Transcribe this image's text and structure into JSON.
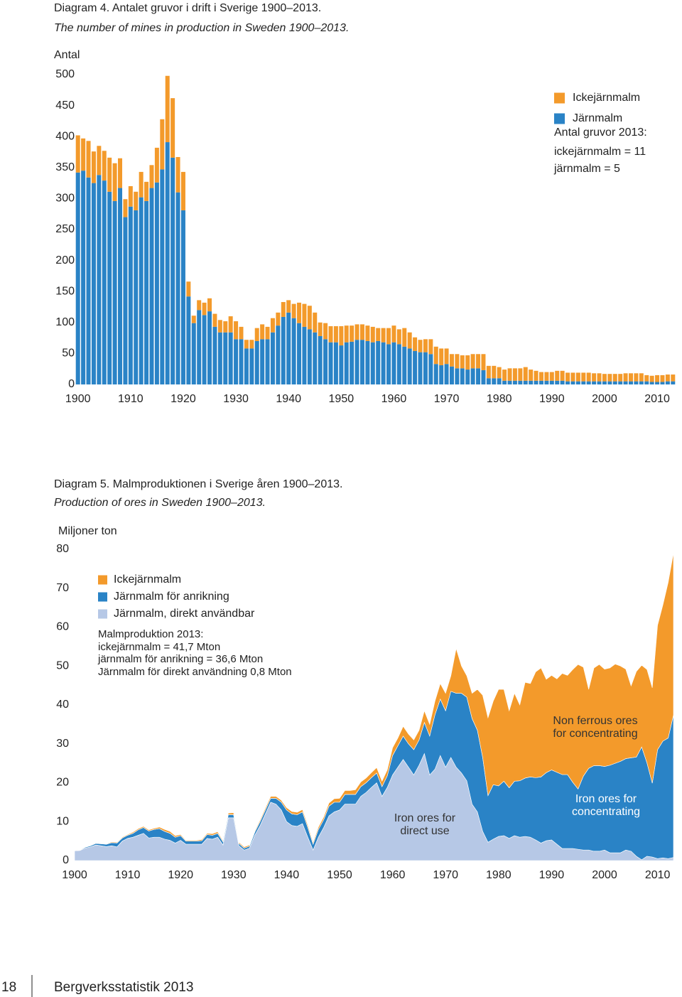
{
  "chart_data": [
    {
      "type": "bar",
      "title": "Diagram 4. Antalet gruvor i drift i Sverige 1900–2013.",
      "subtitle": "The number of mines in production in Sweden 1900–2013.",
      "y_label": "Antal",
      "x": [
        1900,
        1901,
        1902,
        1903,
        1904,
        1905,
        1906,
        1907,
        1908,
        1909,
        1910,
        1911,
        1912,
        1913,
        1914,
        1915,
        1916,
        1917,
        1918,
        1919,
        1920,
        1921,
        1922,
        1923,
        1924,
        1925,
        1926,
        1927,
        1928,
        1929,
        1930,
        1931,
        1932,
        1933,
        1934,
        1935,
        1936,
        1937,
        1938,
        1939,
        1940,
        1941,
        1942,
        1943,
        1944,
        1945,
        1946,
        1947,
        1948,
        1949,
        1950,
        1951,
        1952,
        1953,
        1954,
        1955,
        1956,
        1957,
        1958,
        1959,
        1960,
        1961,
        1962,
        1963,
        1964,
        1965,
        1966,
        1967,
        1968,
        1969,
        1970,
        1971,
        1972,
        1973,
        1974,
        1975,
        1976,
        1977,
        1978,
        1979,
        1980,
        1981,
        1982,
        1983,
        1984,
        1985,
        1986,
        1987,
        1988,
        1989,
        1990,
        1991,
        1992,
        1993,
        1994,
        1995,
        1996,
        1997,
        1998,
        1999,
        2000,
        2001,
        2002,
        2003,
        2004,
        2005,
        2006,
        2007,
        2008,
        2009,
        2010,
        2011,
        2012,
        2013
      ],
      "series": [
        {
          "name": "Ickejärnmalm",
          "color": "#f39a2b",
          "values": [
            60,
            52,
            59,
            51,
            47,
            48,
            55,
            61,
            48,
            29,
            33,
            30,
            41,
            31,
            37,
            56,
            81,
            107,
            96,
            57,
            62,
            24,
            12,
            16,
            20,
            21,
            21,
            20,
            18,
            26,
            29,
            20,
            14,
            14,
            21,
            24,
            20,
            23,
            21,
            24,
            20,
            23,
            33,
            37,
            38,
            32,
            22,
            26,
            26,
            26,
            31,
            27,
            26,
            25,
            25,
            25,
            25,
            21,
            23,
            26,
            27,
            24,
            30,
            26,
            22,
            20,
            21,
            24,
            28,
            27,
            25,
            20,
            23,
            21,
            23,
            23,
            23,
            26,
            20,
            20,
            18,
            18,
            20,
            20,
            20,
            22,
            18,
            16,
            14,
            14,
            14,
            16,
            16,
            14,
            14,
            14,
            14,
            14,
            13,
            13,
            12,
            12,
            12,
            12,
            13,
            13,
            13,
            13,
            10,
            10,
            11,
            11,
            11,
            11
          ]
        },
        {
          "name": "Järnmalm",
          "color": "#2a83c6",
          "values": [
            342,
            345,
            334,
            325,
            338,
            329,
            311,
            296,
            317,
            270,
            287,
            281,
            302,
            296,
            317,
            326,
            347,
            391,
            366,
            310,
            281,
            142,
            99,
            120,
            112,
            118,
            93,
            84,
            84,
            84,
            73,
            73,
            58,
            58,
            70,
            73,
            73,
            84,
            95,
            109,
            116,
            107,
            99,
            93,
            89,
            84,
            78,
            73,
            68,
            68,
            63,
            68,
            69,
            72,
            72,
            70,
            68,
            70,
            68,
            65,
            68,
            65,
            61,
            58,
            54,
            52,
            52,
            49,
            33,
            31,
            33,
            29,
            26,
            26,
            24,
            26,
            26,
            23,
            10,
            10,
            10,
            6,
            6,
            6,
            6,
            6,
            6,
            6,
            6,
            6,
            6,
            6,
            6,
            5,
            5,
            5,
            5,
            5,
            5,
            5,
            5,
            5,
            5,
            5,
            5,
            5,
            5,
            5,
            5,
            4,
            4,
            4,
            5,
            5
          ]
        }
      ],
      "note": [
        "Antal gruvor 2013:",
        "ickejärnmalm = 11",
        "järnmalm = 5"
      ],
      "xlim": [
        1899.5,
        2013.5
      ],
      "xticks": [
        1900,
        1910,
        1920,
        1930,
        1940,
        1950,
        1960,
        1970,
        1980,
        1990,
        2000,
        2010
      ],
      "ylim": [
        0,
        500
      ],
      "yticks": [
        0,
        50,
        100,
        150,
        200,
        250,
        300,
        350,
        400,
        450,
        500
      ],
      "grid": false
    },
    {
      "type": "area",
      "title": "Diagram 5. Malmproduktionen i Sverige åren 1900–2013.",
      "subtitle": "Production of ores in Sweden 1900–2013.",
      "y_label": "Miljoner ton",
      "x": [
        1900,
        1901,
        1902,
        1903,
        1904,
        1905,
        1906,
        1907,
        1908,
        1909,
        1910,
        1911,
        1912,
        1913,
        1914,
        1915,
        1916,
        1917,
        1918,
        1919,
        1920,
        1921,
        1922,
        1923,
        1924,
        1925,
        1926,
        1927,
        1928,
        1929,
        1930,
        1931,
        1932,
        1933,
        1934,
        1935,
        1936,
        1937,
        1938,
        1939,
        1940,
        1941,
        1942,
        1943,
        1944,
        1945,
        1946,
        1947,
        1948,
        1949,
        1950,
        1951,
        1952,
        1953,
        1954,
        1955,
        1956,
        1957,
        1958,
        1959,
        1960,
        1961,
        1962,
        1963,
        1964,
        1965,
        1966,
        1967,
        1968,
        1969,
        1970,
        1971,
        1972,
        1973,
        1974,
        1975,
        1976,
        1977,
        1978,
        1979,
        1980,
        1981,
        1982,
        1983,
        1984,
        1985,
        1986,
        1987,
        1988,
        1989,
        1990,
        1991,
        1992,
        1993,
        1994,
        1995,
        1996,
        1997,
        1998,
        1999,
        2000,
        2001,
        2002,
        2003,
        2004,
        2005,
        2006,
        2007,
        2008,
        2009,
        2010,
        2011,
        2012,
        2013
      ],
      "series": [
        {
          "name": "Ickejärnmalm",
          "color": "#f39a2b",
          "values": [
            0.1,
            0.1,
            0.1,
            0.1,
            0.1,
            0.1,
            0.1,
            0.2,
            0.2,
            0.2,
            0.2,
            0.3,
            0.3,
            0.3,
            0.3,
            0.3,
            0.4,
            0.5,
            0.5,
            0.4,
            0.3,
            0.2,
            0.2,
            0.2,
            0.3,
            0.3,
            0.4,
            0.4,
            0.3,
            0.4,
            0.5,
            0.3,
            0.3,
            0.3,
            0.3,
            0.4,
            0.5,
            0.5,
            0.5,
            0.5,
            0.6,
            0.6,
            0.6,
            0.6,
            0.6,
            0.5,
            0.6,
            0.7,
            0.8,
            0.9,
            1.0,
            1.0,
            1.0,
            1.2,
            1.2,
            1.2,
            1.3,
            1.4,
            1.4,
            1.5,
            2.0,
            2.0,
            2.5,
            2.5,
            2.5,
            2.5,
            3.0,
            3.0,
            3.5,
            4.0,
            4.5,
            4.0,
            11.5,
            7.0,
            5.5,
            6.5,
            10.5,
            16.0,
            20.0,
            21.5,
            24.8,
            23.6,
            19.8,
            22.6,
            19.5,
            24.6,
            24.0,
            27.2,
            28.0,
            24.0,
            24.3,
            24.0,
            26.0,
            25.5,
            29.0,
            32.0,
            28.0,
            20.3,
            25.1,
            26.0,
            25.0,
            25.0,
            25.5,
            24.5,
            23.0,
            18.5,
            22.0,
            21.0,
            24.0,
            24.5,
            32.0,
            35.0,
            40.0,
            41.7
          ]
        },
        {
          "name": "Järnmalm för anrikning",
          "color": "#2a83c6",
          "values": [
            0.1,
            0.1,
            0.2,
            0.3,
            0.4,
            0.5,
            0.6,
            0.8,
            1.0,
            0.8,
            0.8,
            1.0,
            1.4,
            1.5,
            1.8,
            2.0,
            2.2,
            2.0,
            1.8,
            1.5,
            1.2,
            0.8,
            0.8,
            0.8,
            0.9,
            1.0,
            1.0,
            1.0,
            0.8,
            0.8,
            0.8,
            0.6,
            0.5,
            0.5,
            0.8,
            1.0,
            1.0,
            1.0,
            1.5,
            2.0,
            3.0,
            3.0,
            3.0,
            3.0,
            2.5,
            1.5,
            2.0,
            2.0,
            2.5,
            2.5,
            2.0,
            2.5,
            2.5,
            2.5,
            2.5,
            2.5,
            2.5,
            2.5,
            2.5,
            3.0,
            5.0,
            5.5,
            6.0,
            6.0,
            6.5,
            6.5,
            8.0,
            10.0,
            14.0,
            14.5,
            14.5,
            17.0,
            19.0,
            20.5,
            21.5,
            22.0,
            21.0,
            19.0,
            12.0,
            14.0,
            13.0,
            14.0,
            13.0,
            14.0,
            14.5,
            15.0,
            15.5,
            16.0,
            17.0,
            17.5,
            18.0,
            18.5,
            19.0,
            19.0,
            17.0,
            15.5,
            19.0,
            21.0,
            22.0,
            22.0,
            21.5,
            22.5,
            23.0,
            23.5,
            23.5,
            24.0,
            25.5,
            29.0,
            24.0,
            19.0,
            28.0,
            30.0,
            31.0,
            36.6
          ]
        },
        {
          "name": "Järnmalm, direkt användbar",
          "color": "#b6c8e6",
          "values": [
            2.5,
            2.6,
            3.2,
            3.5,
            4.0,
            3.8,
            3.6,
            3.8,
            3.5,
            5.0,
            5.7,
            6.0,
            6.5,
            7.0,
            5.8,
            6.0,
            6.0,
            5.5,
            5.2,
            4.5,
            5.2,
            4.2,
            4.2,
            4.2,
            4.2,
            5.7,
            5.5,
            6.0,
            4.0,
            11.0,
            11.0,
            3.8,
            2.7,
            3.2,
            6.5,
            9.0,
            12.0,
            15.0,
            14.5,
            13.0,
            10.0,
            9.0,
            8.8,
            9.5,
            6.0,
            2.7,
            6.0,
            8.5,
            11.5,
            12.5,
            13.0,
            14.5,
            14.5,
            14.5,
            16.5,
            17.5,
            18.8,
            20.0,
            16.5,
            18.8,
            22.0,
            24.0,
            26.0,
            24.0,
            22.0,
            24.5,
            27.5,
            22.0,
            23.5,
            27.0,
            24.0,
            26.5,
            24.0,
            22.5,
            20.5,
            14.5,
            12.5,
            7.5,
            4.7,
            5.5,
            6.2,
            6.4,
            5.7,
            6.4,
            6.0,
            6.2,
            6.0,
            5.3,
            4.5,
            5.1,
            5.3,
            4.2,
            3.1,
            3.1,
            3.1,
            2.9,
            2.7,
            2.7,
            2.4,
            2.4,
            2.7,
            2.0,
            2.0,
            2.0,
            2.7,
            2.4,
            1.1,
            0.2,
            1.1,
            0.9,
            0.5,
            0.7,
            0.5,
            0.8
          ]
        }
      ],
      "note": [
        "Malmproduktion 2013:",
        "ickejärnmalm = 41,7 Mton",
        "järnmalm för anrikning = 36,6 Mton",
        "Järnmalm för direkt användning 0,8 Mton"
      ],
      "annotations": [
        {
          "lines": [
            "Non ferrous ores",
            "for concentrating"
          ],
          "color": "#333333"
        },
        {
          "lines": [
            "Iron ores for",
            "direct use"
          ],
          "color": "#333333"
        },
        {
          "lines": [
            "Iron ores for",
            "concentrating"
          ],
          "color": "#ffffff"
        }
      ],
      "xlim": [
        1900,
        2013
      ],
      "xticks": [
        1900,
        1910,
        1920,
        1930,
        1940,
        1950,
        1960,
        1970,
        1980,
        1990,
        2000,
        2010
      ],
      "ylim": [
        0,
        80
      ],
      "yticks": [
        0,
        10,
        20,
        30,
        40,
        50,
        60,
        70,
        80
      ],
      "grid": false
    }
  ],
  "footer": {
    "page": "18",
    "title": "Bergverksstatistik 2013"
  }
}
